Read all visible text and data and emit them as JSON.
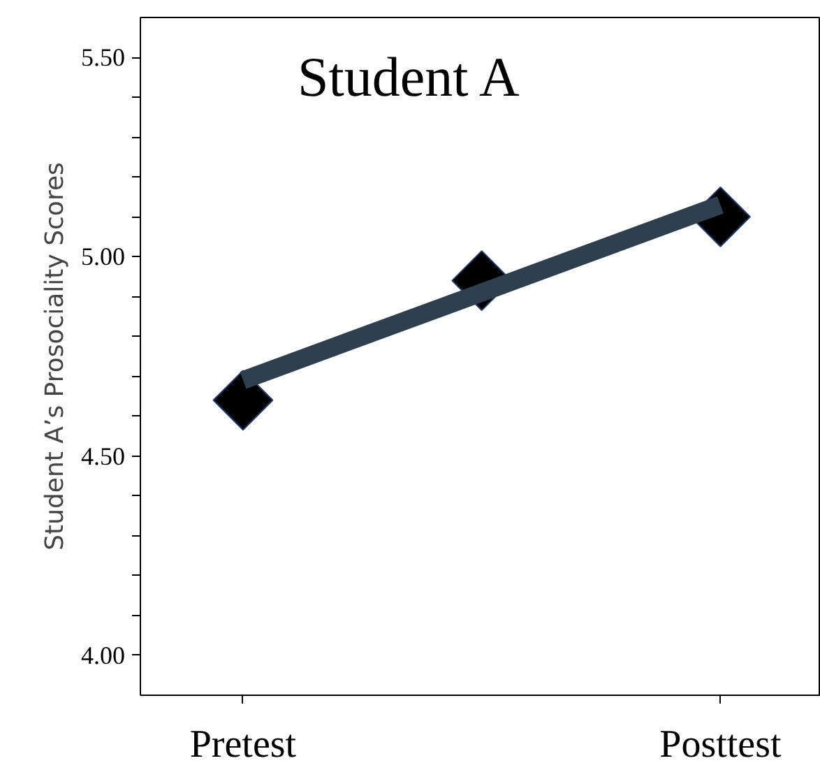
{
  "chart_data": {
    "type": "scatter",
    "title": "Student A",
    "ylabel": "Student A’s Prosociality Scores",
    "categories": [
      "Pretest",
      null,
      "Posttest"
    ],
    "ylim": [
      3.9,
      5.6
    ],
    "yticks": [
      {
        "value": 4.0,
        "label": "4.00"
      },
      {
        "value": 4.1,
        "label": null
      },
      {
        "value": 4.2,
        "label": null
      },
      {
        "value": 4.3,
        "label": null
      },
      {
        "value": 4.4,
        "label": null
      },
      {
        "value": 4.5,
        "label": "4.50"
      },
      {
        "value": 4.6,
        "label": null
      },
      {
        "value": 4.7,
        "label": null
      },
      {
        "value": 4.8,
        "label": null
      },
      {
        "value": 4.9,
        "label": null
      },
      {
        "value": 5.0,
        "label": "5.00"
      },
      {
        "value": 5.1,
        "label": null
      },
      {
        "value": 5.2,
        "label": null
      },
      {
        "value": 5.3,
        "label": null
      },
      {
        "value": 5.4,
        "label": null
      },
      {
        "value": 5.5,
        "label": "5.50"
      }
    ],
    "grid": false,
    "marker": "diamond",
    "series": [
      {
        "color": "#000000",
        "values": [
          4.64,
          4.94,
          5.1
        ]
      },
      {
        "type": "line",
        "color": "#2e3f50",
        "marker": "none",
        "line_style": "solid",
        "values": [
          4.69,
          4.91,
          5.13
        ]
      }
    ]
  }
}
